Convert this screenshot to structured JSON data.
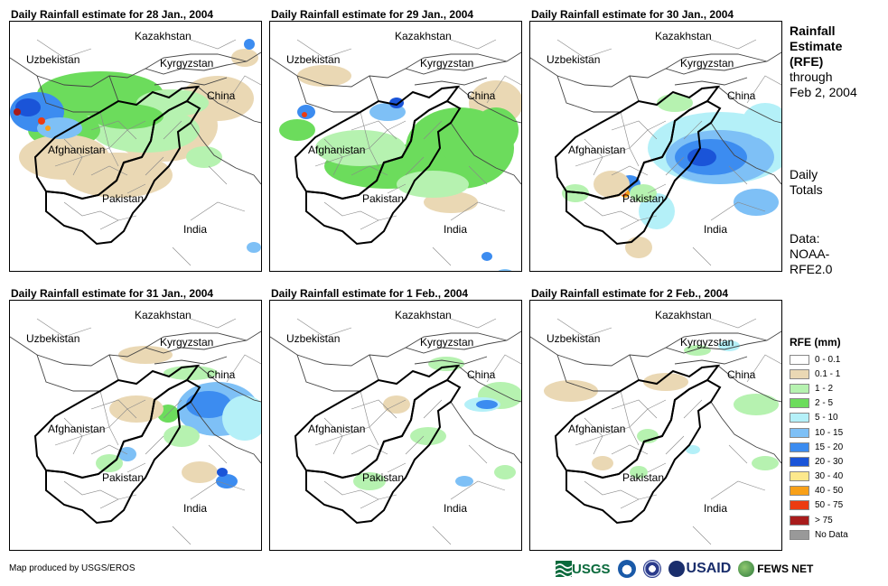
{
  "panels": [
    {
      "title": "Daily Rainfall estimate for 28 Jan., 2004",
      "map_id": "jan28"
    },
    {
      "title": "Daily Rainfall estimate for 29 Jan., 2004",
      "map_id": "jan29"
    },
    {
      "title": "Daily Rainfall estimate for 30 Jan., 2004",
      "map_id": "jan30"
    },
    {
      "title": "Daily Rainfall estimate for 31 Jan., 2004",
      "map_id": "jan31"
    },
    {
      "title": "Daily Rainfall estimate for 1 Feb., 2004",
      "map_id": "feb01"
    },
    {
      "title": "Daily Rainfall estimate for 2 Feb., 2004",
      "map_id": "feb02"
    }
  ],
  "map_labels": {
    "kazakhstan": "Kazakhstan",
    "uzbekistan": "Uzbekistan",
    "kyrgyzstan": "Kyrgyzstan",
    "china": "China",
    "afghanistan": "Afghanistan",
    "pakistan": "Pakistan",
    "india": "India"
  },
  "side": {
    "title_line1": "Rainfall",
    "title_line2": "Estimate",
    "title_line3": "(RFE)",
    "title_line4": "through",
    "title_line5": "Feb 2, 2004",
    "daily_line1": "Daily",
    "daily_line2": "Totals",
    "data_line1": "Data:",
    "data_line2": "NOAA-",
    "data_line3": "RFE2.0"
  },
  "legend": {
    "title": "RFE (mm)",
    "items": [
      {
        "label": "0 - 0.1",
        "color": "#ffffff"
      },
      {
        "label": "0.1 - 1",
        "color": "#ead8b4"
      },
      {
        "label": "1 - 2",
        "color": "#b6f2b0"
      },
      {
        "label": "2 - 5",
        "color": "#6cdc5c"
      },
      {
        "label": "5 - 10",
        "color": "#b4f0f8"
      },
      {
        "label": "10 - 15",
        "color": "#7ec0f6"
      },
      {
        "label": "15 - 20",
        "color": "#3c8cf0"
      },
      {
        "label": "20 - 30",
        "color": "#1a54d8"
      },
      {
        "label": "30 - 40",
        "color": "#fce88c"
      },
      {
        "label": "40 - 50",
        "color": "#f8a018"
      },
      {
        "label": "50 - 75",
        "color": "#ec3c10"
      },
      {
        "label": "> 75",
        "color": "#a81c1c"
      },
      {
        "label": "No Data",
        "color": "#999999"
      }
    ]
  },
  "footer": {
    "credit": "Map produced by USGS/EROS",
    "logo_usgs": "USGS",
    "logo_usaid": "USAID",
    "logo_fewsnet": "FEWS NET"
  }
}
